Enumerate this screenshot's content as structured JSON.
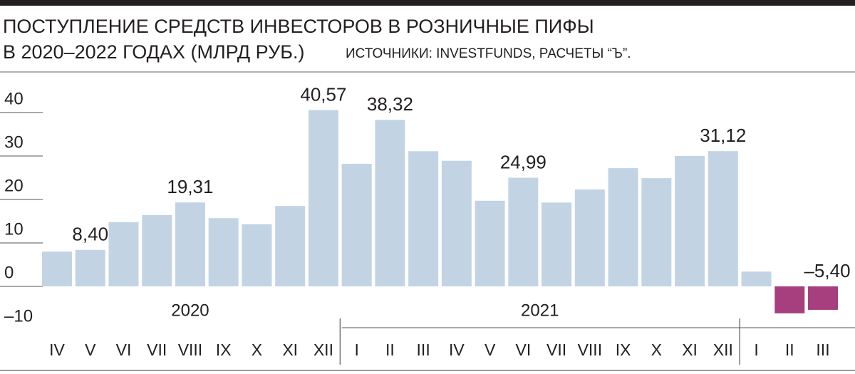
{
  "chart_data": {
    "type": "bar",
    "title": [
      "ПОСТУПЛЕНИЕ СРЕДСТВ ИНВЕСТОРОВ В РОЗНИЧНЫЕ ПИФЫ",
      "В 2020–2022 ГОДАХ (МЛРД РУБ.)"
    ],
    "source": "ИСТОЧНИКИ: INVESTFUNDS, РАСЧЕТЫ “Ъ”.",
    "groups": [
      {
        "label": "2020",
        "categories": [
          "IV",
          "V",
          "VI",
          "VII",
          "VIII",
          "IX",
          "X",
          "XI",
          "XII"
        ]
      },
      {
        "label": "2021",
        "categories": [
          "I",
          "II",
          "III",
          "IV",
          "V",
          "VI",
          "VII",
          "VIII",
          "IX",
          "X",
          "XI",
          "XII"
        ]
      },
      {
        "categories": [
          "I",
          "II",
          "III"
        ]
      }
    ],
    "values": [
      8.0,
      8.4,
      14.8,
      16.4,
      19.31,
      15.7,
      14.3,
      18.5,
      40.57,
      28.2,
      38.32,
      31.1,
      28.9,
      19.7,
      24.99,
      19.3,
      22.3,
      27.2,
      24.9,
      30.0,
      31.12,
      3.4,
      -6.2,
      -5.4
    ],
    "value_labels": [
      null,
      "8,40",
      null,
      null,
      "19,31",
      null,
      null,
      null,
      "40,57",
      null,
      "38,32",
      null,
      null,
      null,
      "24,99",
      null,
      null,
      null,
      null,
      null,
      "31,12",
      null,
      null,
      "–5,40"
    ],
    "color": "#c2d4e4",
    "negative_color": "#a73f7e",
    "ylim": [
      -10,
      40
    ],
    "yticks": [
      {
        "value": -10,
        "label": "–10"
      },
      0,
      10,
      20,
      30,
      40
    ],
    "grid": true
  }
}
